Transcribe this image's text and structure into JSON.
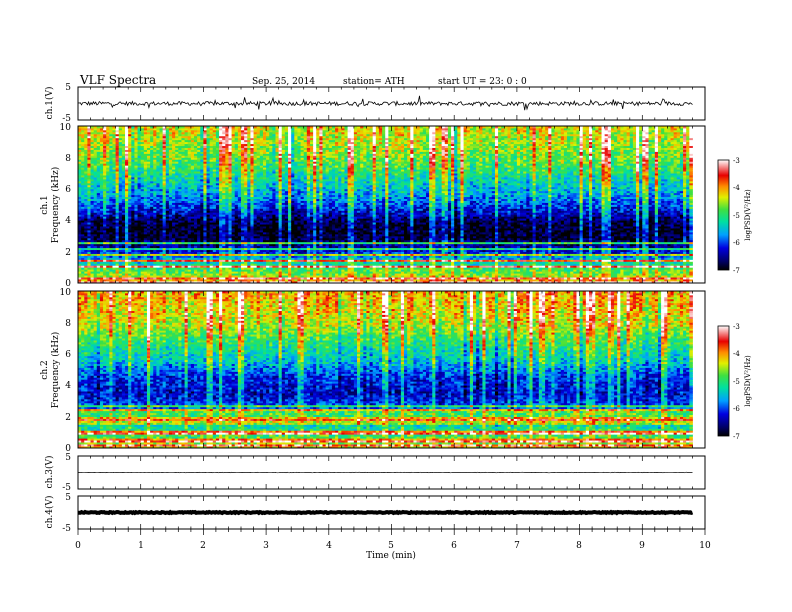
{
  "header": {
    "title": "VLF  Spectra",
    "date": "Sep. 25, 2014",
    "station": "station= ATH",
    "start": "start  UT  =   23: 0  : 0"
  },
  "chart_data": [
    {
      "type": "line",
      "name": "ch1-waveform",
      "ylabel": "ch.1(V)",
      "ylim": [
        -5,
        5
      ],
      "yticks": [
        "5",
        "-5"
      ],
      "xlim": [
        0,
        10
      ],
      "baseline": 0,
      "noise_amplitude": 0.6
    },
    {
      "type": "heatmap",
      "name": "ch1-spectrogram",
      "ylabel_line1": "ch.1",
      "ylabel_line2": "Frequency (kHz)",
      "ylim": [
        0,
        10
      ],
      "yticks": [
        "0",
        "2",
        "4",
        "6",
        "8",
        "10"
      ],
      "xlim": [
        0,
        10
      ],
      "data_xmax": 9.8,
      "colorbar": {
        "label": "logPSD(V²/Hz)",
        "range": [
          -7,
          -3
        ],
        "ticks": [
          "-3",
          "-4",
          "-5",
          "-6",
          "-7"
        ]
      },
      "profile_khz": [
        0,
        0.5,
        1,
        1.5,
        2,
        2.5,
        3,
        3.5,
        4,
        4.5,
        5,
        5.5,
        6,
        6.5,
        7,
        7.5,
        8,
        8.5,
        9,
        9.5,
        10
      ],
      "profile_logpsd": [
        -3.8,
        -4.6,
        -5.0,
        -5.5,
        -6.2,
        -6.6,
        -6.9,
        -6.9,
        -6.7,
        -6.3,
        -6.0,
        -5.7,
        -5.5,
        -5.3,
        -5.1,
        -4.9,
        -4.7,
        -4.6,
        -4.5,
        -4.4,
        -4.3
      ]
    },
    {
      "type": "heatmap",
      "name": "ch2-spectrogram",
      "ylabel_line1": "ch.2",
      "ylabel_line2": "Frequency (kHz)",
      "ylim": [
        0,
        10
      ],
      "yticks": [
        "0",
        "2",
        "4",
        "6",
        "8",
        "10"
      ],
      "xlim": [
        0,
        10
      ],
      "data_xmax": 9.8,
      "colorbar": {
        "label": "logPSD(V²/Hz)",
        "range": [
          -7,
          -3
        ],
        "ticks": [
          "-3",
          "-4",
          "-5",
          "-6",
          "-7"
        ]
      },
      "profile_khz": [
        0,
        0.5,
        1,
        1.5,
        2,
        2.5,
        3,
        3.5,
        4,
        4.5,
        5,
        5.5,
        6,
        6.5,
        7,
        7.5,
        8,
        8.5,
        9,
        9.5,
        10
      ],
      "profile_logpsd": [
        -4.2,
        -4.8,
        -5.0,
        -5.3,
        -5.6,
        -5.8,
        -6.1,
        -6.3,
        -6.2,
        -6.1,
        -5.8,
        -5.5,
        -5.3,
        -5.1,
        -4.9,
        -4.6,
        -4.4,
        -4.3,
        -4.2,
        -4.1,
        -4.0
      ]
    },
    {
      "type": "line",
      "name": "ch3-waveform",
      "ylabel": "ch.3(V)",
      "ylim": [
        -5,
        5
      ],
      "yticks": [
        "5",
        "-5"
      ],
      "xlim": [
        0,
        10
      ],
      "baseline": 0,
      "noise_amplitude": 0.08
    },
    {
      "type": "line",
      "name": "ch4-waveform",
      "ylabel": "ch.4(V)",
      "ylim": [
        -5,
        5
      ],
      "yticks": [
        "5",
        "-5"
      ],
      "xlim": [
        0,
        10
      ],
      "baseline": 0,
      "noise_amplitude": 0.15
    }
  ],
  "xaxis": {
    "label": "Time  (min)",
    "ticks": [
      "0",
      "1",
      "2",
      "3",
      "4",
      "5",
      "6",
      "7",
      "8",
      "9",
      "10"
    ]
  }
}
